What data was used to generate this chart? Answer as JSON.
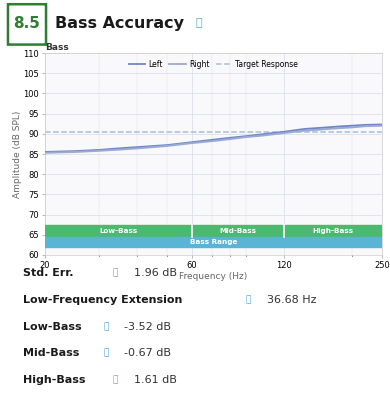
{
  "title": "Bass Accuracy",
  "score": "8.5",
  "chart_title": "Bass",
  "xlabel": "Frequency (Hz)",
  "ylabel": "Amplitude (dB SPL)",
  "xlim": [
    20,
    250
  ],
  "ylim": [
    60,
    110
  ],
  "yticks": [
    60,
    65,
    70,
    75,
    80,
    85,
    90,
    95,
    100,
    105,
    110
  ],
  "xticks": [
    20,
    60,
    120,
    250
  ],
  "target_response_y": 90.5,
  "left_x": [
    20,
    25,
    30,
    35,
    40,
    50,
    60,
    70,
    80,
    90,
    100,
    120,
    140,
    160,
    180,
    200,
    220,
    250
  ],
  "left_y": [
    85.5,
    85.7,
    86.0,
    86.4,
    86.7,
    87.2,
    87.9,
    88.5,
    89.0,
    89.4,
    89.8,
    90.5,
    91.2,
    91.5,
    91.8,
    92.0,
    92.2,
    92.3
  ],
  "right_x": [
    20,
    25,
    30,
    35,
    40,
    50,
    60,
    70,
    80,
    90,
    100,
    120,
    140,
    160,
    180,
    200,
    220,
    250
  ],
  "right_y": [
    85.3,
    85.5,
    85.8,
    86.1,
    86.4,
    87.0,
    87.7,
    88.2,
    88.7,
    89.2,
    89.5,
    90.2,
    90.8,
    91.1,
    91.4,
    91.6,
    91.9,
    92.0
  ],
  "left_color": "#6e86c8",
  "right_color": "#9aaad4",
  "target_color": "#a8bedd",
  "bg_color": "#ffffff",
  "chart_bg": "#f9f9fb",
  "grid_color": "#dde0ea",
  "green_band_color": "#4cba6e",
  "blue_band_color": "#5ab4d6",
  "low_bass_label": "Low-Bass",
  "mid_bass_label": "Mid-Bass",
  "high_bass_label": "High-Bass",
  "bass_range_label": "Bass Range",
  "low_bass_xrange": [
    20,
    60
  ],
  "mid_bass_xrange": [
    60,
    120
  ],
  "high_bass_xrange": [
    120,
    250
  ],
  "score_color": "#2e7d32",
  "score_box_color": "#2e7d32",
  "info_color": "#4da6e8",
  "stats": [
    {
      "label": "Std. Err.",
      "icon": true,
      "value": "1.96 dB"
    },
    {
      "label": "Low-Frequency Extension",
      "icon": true,
      "value": "36.68 Hz"
    },
    {
      "label": "Low-Bass",
      "icon": true,
      "value": "-3.52 dB"
    },
    {
      "label": "Mid-Bass",
      "icon": true,
      "value": "-0.67 dB"
    },
    {
      "label": "High-Bass",
      "icon": true,
      "value": "1.61 dB"
    }
  ]
}
